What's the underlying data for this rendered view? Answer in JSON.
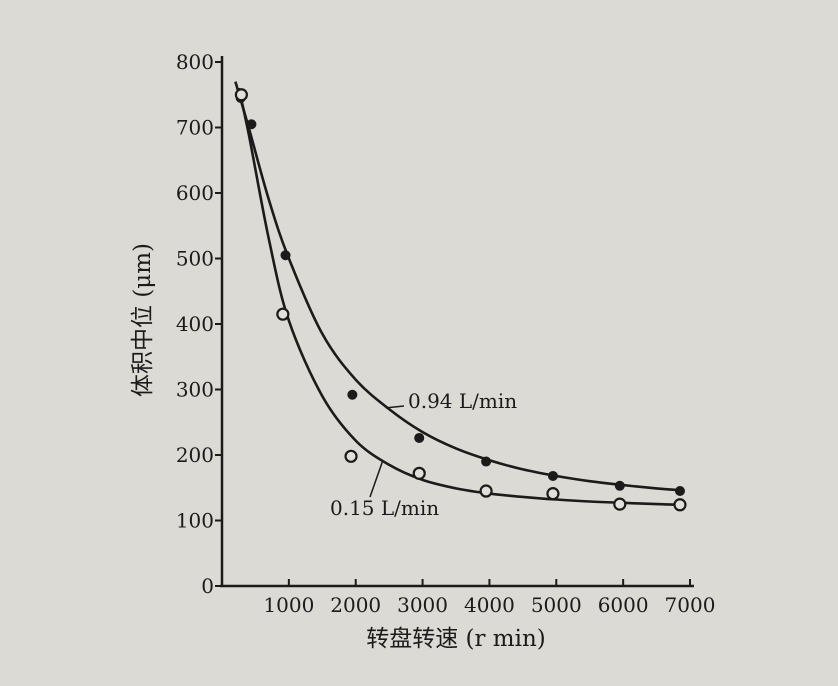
{
  "chart_data": {
    "type": "line",
    "xlabel": "转盘转速 (r min)",
    "ylabel": "体积中位 (μm)",
    "xlim": [
      0,
      7000
    ],
    "ylim": [
      0,
      800
    ],
    "x_ticks": [
      "1000",
      "2000",
      "3000",
      "4000",
      "5000",
      "6000",
      "7000"
    ],
    "y_ticks": [
      "0",
      "100",
      "200",
      "300",
      "400",
      "500",
      "600",
      "700",
      "800"
    ],
    "grid": false,
    "legend": "inline labels near curves",
    "series": [
      {
        "name": "0.94 L/min",
        "marker": "filled-circle",
        "points": [
          [
            280,
            745
          ],
          [
            440,
            705
          ],
          [
            950,
            505
          ],
          [
            1950,
            292
          ],
          [
            2950,
            226
          ],
          [
            3950,
            190
          ],
          [
            4950,
            168
          ],
          [
            5950,
            153
          ],
          [
            6850,
            145
          ]
        ],
        "curve": [
          [
            200,
            770
          ],
          [
            400,
            700
          ],
          [
            700,
            590
          ],
          [
            1000,
            500
          ],
          [
            1500,
            385
          ],
          [
            2000,
            315
          ],
          [
            2500,
            270
          ],
          [
            3000,
            235
          ],
          [
            3500,
            210
          ],
          [
            4000,
            192
          ],
          [
            4500,
            178
          ],
          [
            5000,
            168
          ],
          [
            5500,
            160
          ],
          [
            6000,
            154
          ],
          [
            6500,
            149
          ],
          [
            6900,
            146
          ]
        ]
      },
      {
        "name": "0.15 L/min",
        "marker": "open-circle",
        "points": [
          [
            290,
            750
          ],
          [
            910,
            415
          ],
          [
            1930,
            198
          ],
          [
            2950,
            172
          ],
          [
            3950,
            145
          ],
          [
            4950,
            141
          ],
          [
            5950,
            125
          ],
          [
            6850,
            124
          ]
        ],
        "curve": [
          [
            250,
            760
          ],
          [
            400,
            690
          ],
          [
            700,
            530
          ],
          [
            1000,
            405
          ],
          [
            1500,
            290
          ],
          [
            2000,
            222
          ],
          [
            2500,
            185
          ],
          [
            3000,
            162
          ],
          [
            3500,
            149
          ],
          [
            4000,
            141
          ],
          [
            4500,
            136
          ],
          [
            5000,
            132
          ],
          [
            5500,
            129
          ],
          [
            6000,
            127
          ],
          [
            6500,
            125
          ],
          [
            6900,
            124
          ]
        ]
      }
    ],
    "annotations": [
      {
        "text": "0.94 L/min",
        "series": 0
      },
      {
        "text": "0.15 L/min",
        "series": 1
      }
    ]
  }
}
